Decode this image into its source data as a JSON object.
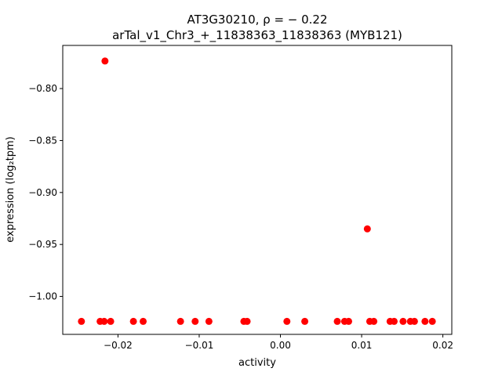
{
  "chart_data": {
    "type": "scatter",
    "title_line1": "AT3G30210, ρ = − 0.22",
    "title_line2": "arTal_v1_Chr3_+_11838363_11838363 (MYB121)",
    "xlabel": "activity",
    "ylabel": "expression (log₂tpm)",
    "xlim": [
      -0.0268,
      0.0211
    ],
    "ylim": [
      -1.0365,
      -0.7585
    ],
    "xticks": [
      {
        "value": -0.02,
        "label": "−0.02"
      },
      {
        "value": -0.01,
        "label": "−0.01"
      },
      {
        "value": 0.0,
        "label": "0.00"
      },
      {
        "value": 0.01,
        "label": "0.01"
      },
      {
        "value": 0.02,
        "label": "0.02"
      }
    ],
    "yticks": [
      {
        "value": -0.8,
        "label": "−0.80"
      },
      {
        "value": -0.85,
        "label": "−0.85"
      },
      {
        "value": -0.9,
        "label": "−0.90"
      },
      {
        "value": -0.95,
        "label": "−0.95"
      },
      {
        "value": -1.0,
        "label": "−1.00"
      }
    ],
    "grid": false,
    "marker_color": "#ff0000",
    "points": [
      {
        "x": -0.0245,
        "y": -1.024
      },
      {
        "x": -0.0222,
        "y": -1.024
      },
      {
        "x": -0.0217,
        "y": -1.024
      },
      {
        "x": -0.0216,
        "y": -0.7735
      },
      {
        "x": -0.0209,
        "y": -1.024
      },
      {
        "x": -0.0181,
        "y": -1.024
      },
      {
        "x": -0.0169,
        "y": -1.024
      },
      {
        "x": -0.0123,
        "y": -1.024
      },
      {
        "x": -0.0105,
        "y": -1.024
      },
      {
        "x": -0.0088,
        "y": -1.024
      },
      {
        "x": -0.0045,
        "y": -1.024
      },
      {
        "x": -0.0041,
        "y": -1.024
      },
      {
        "x": 0.0008,
        "y": -1.024
      },
      {
        "x": 0.003,
        "y": -1.024
      },
      {
        "x": 0.007,
        "y": -1.024
      },
      {
        "x": 0.0079,
        "y": -1.024
      },
      {
        "x": 0.0084,
        "y": -1.024
      },
      {
        "x": 0.0107,
        "y": -0.935
      },
      {
        "x": 0.011,
        "y": -1.024
      },
      {
        "x": 0.0115,
        "y": -1.024
      },
      {
        "x": 0.0135,
        "y": -1.024
      },
      {
        "x": 0.014,
        "y": -1.024
      },
      {
        "x": 0.0151,
        "y": -1.024
      },
      {
        "x": 0.016,
        "y": -1.024
      },
      {
        "x": 0.0165,
        "y": -1.024
      },
      {
        "x": 0.0178,
        "y": -1.024
      },
      {
        "x": 0.0187,
        "y": -1.024
      }
    ]
  }
}
